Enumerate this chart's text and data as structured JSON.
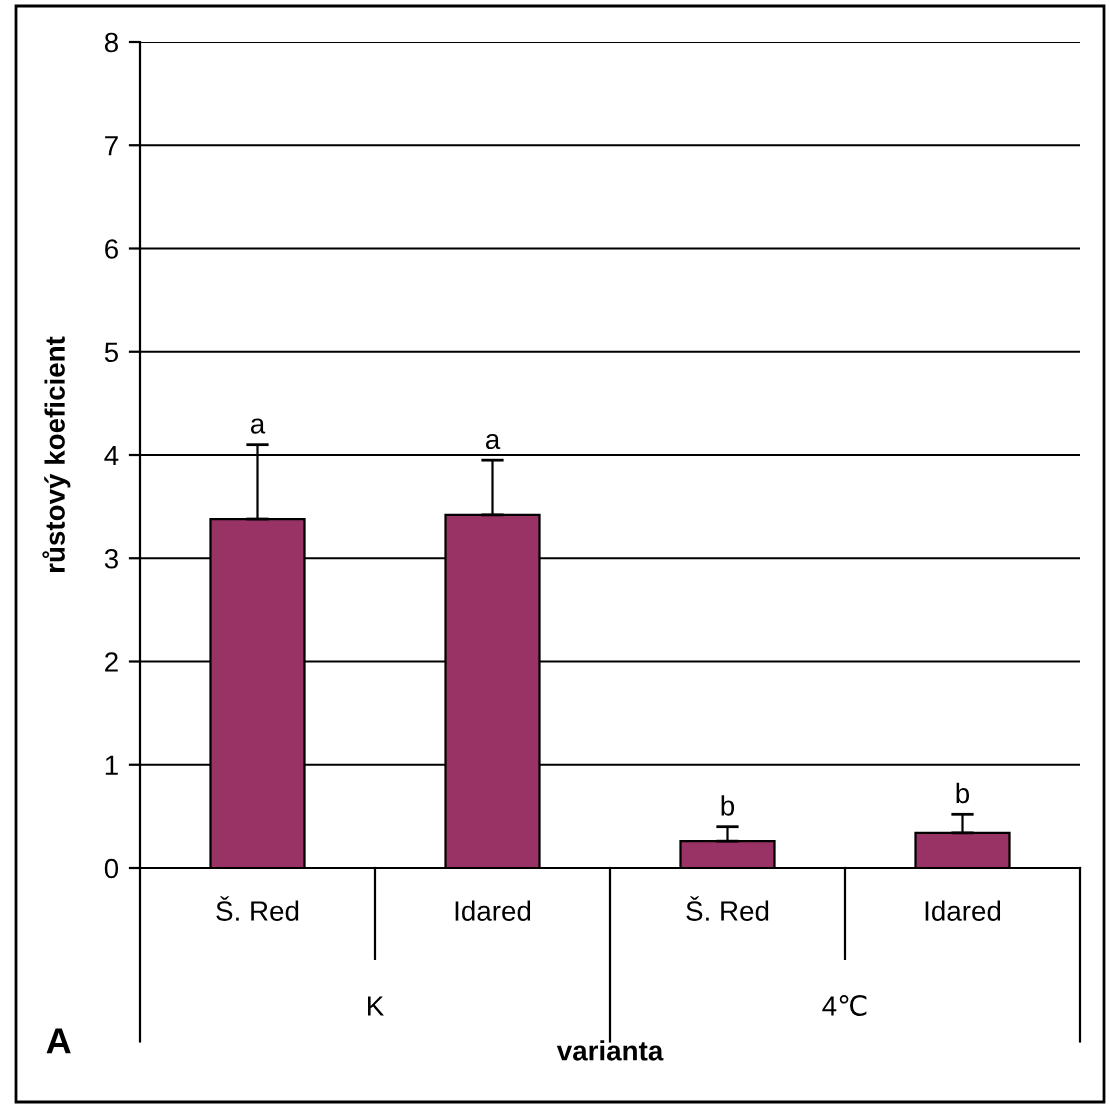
{
  "chart_data": {
    "type": "bar",
    "xlabel": "varianta",
    "ylabel": "růstový koeficient",
    "categories": [
      "Š. Red",
      "Idared",
      "Š. Red",
      "Idared"
    ],
    "values": [
      3.38,
      3.42,
      0.26,
      0.34
    ],
    "errors": [
      [
        3.38,
        4.1
      ],
      [
        3.42,
        3.95
      ],
      [
        0.26,
        0.4
      ],
      [
        0.34,
        0.52
      ]
    ],
    "value_labels": [
      "a",
      "a",
      "b",
      "b"
    ],
    "color": "#993366",
    "ylim": [
      0,
      8
    ],
    "yticks": [
      0,
      1,
      2,
      3,
      4,
      5,
      6,
      7,
      8
    ],
    "grid": "y",
    "annotations": [
      "K",
      "4℃",
      "A"
    ]
  }
}
